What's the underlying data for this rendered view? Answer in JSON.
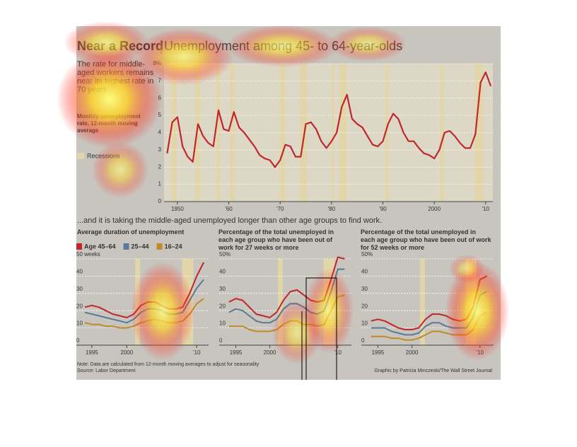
{
  "header": {
    "title": "Near a Record",
    "subtitle": "Unemployment among 45- to 64-year-olds",
    "blurb": "The rate for middle-aged workers remains near its highest rate in 70 years",
    "measure": "Monthly unemployment rate, 12-month moving average",
    "recession_label": "Recessions",
    "section_heading": "...and it is taking the middle-aged unemployed longer than other age groups to find work."
  },
  "chart_data": [
    {
      "type": "line",
      "recession_color": "#e2d6a8",
      "recessions": [
        [
          1948.9,
          1949.8
        ],
        [
          1953.5,
          1954.4
        ],
        [
          1957.6,
          1958.3
        ],
        [
          1960.3,
          1961.1
        ],
        [
          1969.9,
          1970.9
        ],
        [
          1973.9,
          1975.2
        ],
        [
          1980.0,
          1980.5
        ],
        [
          1981.5,
          1982.9
        ],
        [
          1990.5,
          1991.2
        ],
        [
          2001.2,
          2001.9
        ],
        [
          2007.9,
          2009.5
        ]
      ],
      "x": [
        1948,
        1949,
        1950,
        1951,
        1952,
        1953,
        1954,
        1955,
        1956,
        1957,
        1958,
        1959,
        1960,
        1961,
        1962,
        1963,
        1964,
        1965,
        1966,
        1967,
        1968,
        1969,
        1970,
        1971,
        1972,
        1973,
        1974,
        1975,
        1976,
        1977,
        1978,
        1979,
        1980,
        1981,
        1982,
        1983,
        1984,
        1985,
        1986,
        1987,
        1988,
        1989,
        1990,
        1991,
        1992,
        1993,
        1994,
        1995,
        1996,
        1997,
        1998,
        1999,
        2000,
        2001,
        2002,
        2003,
        2004,
        2005,
        2006,
        2007,
        2008,
        2009,
        2010,
        2011
      ],
      "series": [
        {
          "color": "#c0272d",
          "values": [
            2.8,
            4.6,
            4.9,
            3.2,
            2.6,
            2.3,
            4.5,
            3.8,
            3.4,
            3.2,
            5.3,
            4.2,
            4.1,
            5.2,
            4.3,
            4.0,
            3.6,
            3.2,
            2.7,
            2.5,
            2.4,
            2.0,
            2.4,
            3.3,
            3.2,
            2.6,
            2.6,
            4.5,
            4.6,
            4.2,
            3.5,
            3.1,
            3.5,
            4.0,
            5.5,
            6.2,
            4.8,
            4.5,
            4.3,
            3.8,
            3.3,
            3.2,
            3.5,
            4.5,
            5.1,
            4.8,
            4.0,
            3.5,
            3.5,
            3.1,
            2.8,
            2.7,
            2.5,
            3.0,
            4.0,
            4.1,
            3.8,
            3.4,
            3.1,
            3.1,
            3.9,
            6.9,
            7.5,
            6.7
          ]
        }
      ],
      "xlim": [
        1947.4,
        2011.4
      ],
      "ylim": [
        0,
        8
      ],
      "xticks": [
        {
          "value": 1950,
          "label": "1950"
        },
        {
          "value": 1960,
          "label": "'60"
        },
        {
          "value": 1970,
          "label": "'70"
        },
        {
          "value": 1980,
          "label": "'80"
        },
        {
          "value": 1990,
          "label": "'90"
        },
        2000,
        {
          "value": 2010,
          "label": "'10"
        }
      ],
      "yticks": [
        0,
        1,
        2,
        3,
        4,
        5,
        6,
        7,
        {
          "value": 8,
          "label": "8%"
        }
      ]
    },
    {
      "type": "line",
      "title": "Average duration of unemployment",
      "recession_color": "#e2d6a8",
      "recessions": [
        [
          2001.2,
          2001.9
        ],
        [
          2007.9,
          2009.5
        ]
      ],
      "x": [
        1994,
        1995,
        1996,
        1997,
        1998,
        1999,
        2000,
        2001,
        2002,
        2003,
        2004,
        2005,
        2006,
        2007,
        2008,
        2009,
        2010,
        2011
      ],
      "series": [
        {
          "name": "Age 45–64",
          "color": "#c0272d",
          "values": [
            22,
            23,
            22,
            20,
            18,
            17,
            16,
            18,
            23,
            25,
            25,
            23,
            21,
            21,
            22,
            30,
            40,
            48
          ]
        },
        {
          "name": "25–44",
          "color": "#5b7a95",
          "values": [
            19,
            18,
            17,
            16,
            15,
            14,
            13,
            15,
            19,
            21,
            21,
            20,
            18,
            18,
            19,
            26,
            33,
            38
          ]
        },
        {
          "name": "16–24",
          "color": "#c08a2a",
          "values": [
            13,
            12,
            12,
            11,
            11,
            10,
            10,
            11,
            13,
            14,
            15,
            14,
            13,
            13,
            14,
            18,
            24,
            27
          ]
        }
      ],
      "xlim": [
        1993.8,
        2011.7
      ],
      "ylim": [
        0,
        50
      ],
      "xticks": [
        1995,
        2000,
        {
          "value": 2010,
          "label": "'10"
        }
      ],
      "yticks": [
        0,
        10,
        20,
        30,
        40,
        {
          "value": 50,
          "label": "50 weeks"
        }
      ]
    },
    {
      "type": "line",
      "title": "Percentage of the total unemployed in each age group who have been out of work for 27 weeks or more",
      "recession_color": "#e2d6a8",
      "recessions": [
        [
          2001.2,
          2001.9
        ],
        [
          2007.9,
          2009.5
        ]
      ],
      "x": [
        1994,
        1995,
        1996,
        1997,
        1998,
        1999,
        2000,
        2001,
        2002,
        2003,
        2004,
        2005,
        2006,
        2007,
        2008,
        2009,
        2010,
        2011
      ],
      "series": [
        {
          "color": "#c0272d",
          "values": [
            25,
            27,
            26,
            22,
            18,
            17,
            16,
            19,
            26,
            31,
            32,
            29,
            26,
            25,
            26,
            38,
            51,
            50
          ]
        },
        {
          "color": "#5b7a95",
          "values": [
            19,
            21,
            20,
            17,
            14,
            13,
            13,
            15,
            21,
            24,
            24,
            22,
            19,
            18,
            20,
            31,
            44,
            44
          ]
        },
        {
          "color": "#c08a2a",
          "values": [
            11,
            11,
            11,
            9,
            8,
            8,
            8,
            9,
            12,
            14,
            14,
            12,
            12,
            11,
            12,
            20,
            28,
            29
          ]
        }
      ],
      "xlim": [
        1993.6,
        2012
      ],
      "ylim": [
        0,
        50
      ],
      "xticks": [
        1995,
        2000,
        {
          "value": 2010,
          "label": "'10"
        }
      ],
      "yticks": [
        0,
        10,
        20,
        30,
        40,
        {
          "value": 50,
          "label": "50%"
        }
      ]
    },
    {
      "type": "line",
      "title": "Percentage of the total unemployed in each age group who have been out of work for 52 weeks or more",
      "recession_color": "#e2d6a8",
      "recessions": [
        [
          2001.2,
          2001.9
        ],
        [
          2007.9,
          2009.5
        ]
      ],
      "x": [
        1994,
        1995,
        1996,
        1997,
        1998,
        1999,
        2000,
        2001,
        2002,
        2003,
        2004,
        2005,
        2006,
        2007,
        2008,
        2009,
        2010,
        2011
      ],
      "series": [
        {
          "color": "#c0272d",
          "values": [
            14,
            15,
            14,
            12,
            10,
            9,
            9,
            10,
            15,
            18,
            18,
            17,
            15,
            14,
            15,
            22,
            38,
            40
          ]
        },
        {
          "color": "#5b7a95",
          "values": [
            10,
            10,
            10,
            8,
            7,
            6,
            6,
            7,
            11,
            13,
            13,
            11,
            10,
            10,
            10,
            16,
            29,
            31
          ]
        },
        {
          "color": "#c08a2a",
          "values": [
            5,
            5,
            5,
            4,
            4,
            3,
            3,
            4,
            6,
            8,
            8,
            7,
            6,
            6,
            6,
            9,
            17,
            19
          ]
        }
      ],
      "xlim": [
        1993.6,
        2012
      ],
      "ylim": [
        0,
        50
      ],
      "xticks": [
        1995,
        2000,
        {
          "value": 2010,
          "label": "'10"
        }
      ],
      "yticks": [
        0,
        10,
        20,
        30,
        40,
        {
          "value": 50,
          "label": "50%"
        }
      ]
    }
  ],
  "footer": {
    "note": "Note: Data are calculated from 12-month moving averages to adjust for seasonality",
    "source": "Source: Labor Department",
    "credit": "Graphic by Patricia Minczeski/The Wall Street Journal"
  }
}
